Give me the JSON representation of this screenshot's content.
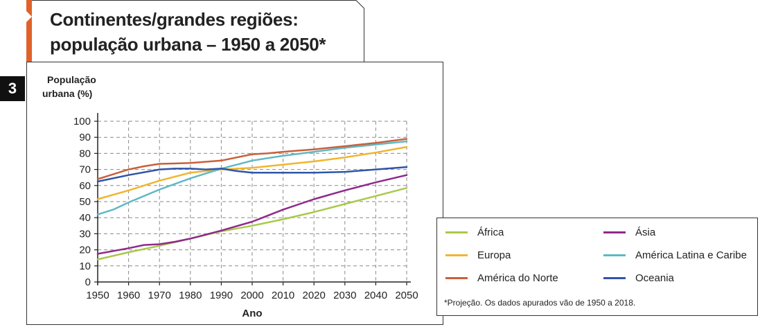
{
  "title_lines": [
    "Continentes/grandes regiões:",
    "população urbana – 1950 a 2050*"
  ],
  "figure_number": "3",
  "colors": {
    "accent": "#e0622a",
    "africa": "#a8c94a",
    "europa": "#f0b530",
    "america_norte": "#c8603a",
    "asia": "#8f2a8a",
    "america_latina": "#5fb9c4",
    "oceania": "#2f55a8"
  },
  "legend": {
    "items": [
      {
        "label": "África",
        "color": "#a8c94a"
      },
      {
        "label": "Ásia",
        "color": "#8f2a8a"
      },
      {
        "label": "Europa",
        "color": "#f0b530"
      },
      {
        "label": "América Latina e Caribe",
        "color": "#5fb9c4"
      },
      {
        "label": "América do Norte",
        "color": "#c8603a"
      },
      {
        "label": "Oceania",
        "color": "#2f55a8"
      }
    ],
    "footnote": "*Projeção. Os dados apurados vão de 1950 a 2018."
  },
  "chart_data": {
    "type": "line",
    "ylabel_lines": [
      "População",
      "urbana (%)"
    ],
    "xlabel": "Ano",
    "xlim": [
      1950,
      2050
    ],
    "ylim": [
      0,
      100
    ],
    "x_ticks": [
      1950,
      1960,
      1970,
      1980,
      1990,
      2000,
      2010,
      2020,
      2030,
      2040,
      2050
    ],
    "y_ticks": [
      0,
      10,
      20,
      30,
      40,
      50,
      60,
      70,
      80,
      90,
      100
    ],
    "grid": true,
    "legend_position": "bottom-right",
    "series": [
      {
        "name": "África",
        "color": "#a8c94a",
        "x": [
          1950,
          1960,
          1970,
          1980,
          1990,
          2000,
          2010,
          2020,
          2030,
          2040,
          2050
        ],
        "values": [
          14,
          18.5,
          22.5,
          27,
          31.5,
          35,
          39,
          43.5,
          48.5,
          53.5,
          58.5
        ]
      },
      {
        "name": "Ásia",
        "color": "#8f2a8a",
        "x": [
          1950,
          1960,
          1965,
          1970,
          1975,
          1980,
          1990,
          2000,
          2010,
          2020,
          2030,
          2040,
          2050
        ],
        "values": [
          17.5,
          21,
          23,
          23.5,
          25,
          27,
          32,
          37.5,
          45,
          51.5,
          57,
          62,
          66.5
        ]
      },
      {
        "name": "Europa",
        "color": "#f0b530",
        "x": [
          1950,
          1960,
          1970,
          1980,
          1990,
          2000,
          2010,
          2020,
          2030,
          2040,
          2050
        ],
        "values": [
          51.5,
          57,
          63,
          68,
          70,
          71,
          73,
          75,
          77.5,
          80.5,
          84
        ]
      },
      {
        "name": "América Latina e Caribe",
        "color": "#5fb9c4",
        "x": [
          1950,
          1955,
          1960,
          1970,
          1980,
          1990,
          2000,
          2010,
          2020,
          2030,
          2040,
          2050
        ],
        "values": [
          42,
          45,
          49.5,
          57.5,
          64.5,
          70.5,
          75.5,
          78.5,
          81,
          83.5,
          85.5,
          87.5
        ]
      },
      {
        "name": "América do Norte",
        "color": "#c8603a",
        "x": [
          1950,
          1955,
          1960,
          1965,
          1970,
          1980,
          1990,
          2000,
          2005,
          2010,
          2020,
          2030,
          2040,
          2050
        ],
        "values": [
          64,
          67,
          70,
          72,
          73.5,
          74,
          75.5,
          79.5,
          80,
          81,
          82.5,
          84.5,
          86.5,
          89
        ]
      },
      {
        "name": "Oceania",
        "color": "#2f55a8",
        "x": [
          1950,
          1960,
          1970,
          1975,
          1980,
          1985,
          1990,
          1995,
          2000,
          2010,
          2020,
          2030,
          2040,
          2050
        ],
        "values": [
          62.5,
          66.5,
          70,
          70.5,
          70.5,
          70,
          70.5,
          69,
          68,
          68,
          68,
          68.5,
          70,
          71.5
        ]
      }
    ]
  }
}
